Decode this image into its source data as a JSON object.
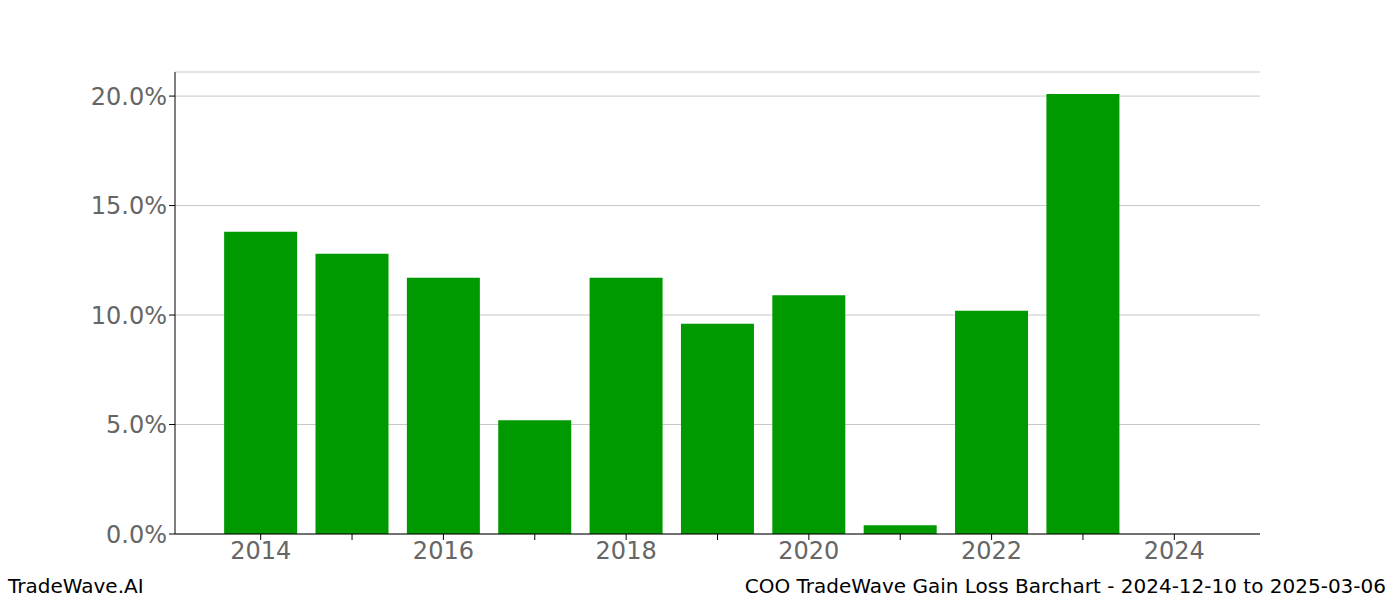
{
  "chart_data": {
    "type": "bar",
    "title": "COO TradeWave Gain Loss Barchart - 2024-12-10 to 2025-03-06",
    "annotations": [
      "TradeWave.AI"
    ],
    "categories": [
      "2014",
      null,
      "2016",
      null,
      "2018",
      null,
      "2020",
      null,
      "2022",
      null,
      "2024"
    ],
    "values": [
      13.8,
      12.8,
      11.7,
      5.2,
      11.7,
      9.6,
      10.9,
      0.4,
      10.2,
      20.1,
      null
    ],
    "color": "#009900",
    "ylim": [
      0,
      21.1
    ],
    "yticks": [
      {
        "value": 0,
        "label": "0.0%"
      },
      {
        "value": 5,
        "label": "5.0%"
      },
      {
        "value": 10,
        "label": "10.0%"
      },
      {
        "value": 15,
        "label": "15.0%"
      },
      {
        "value": 20,
        "label": "20.0%"
      }
    ],
    "grid": true
  }
}
